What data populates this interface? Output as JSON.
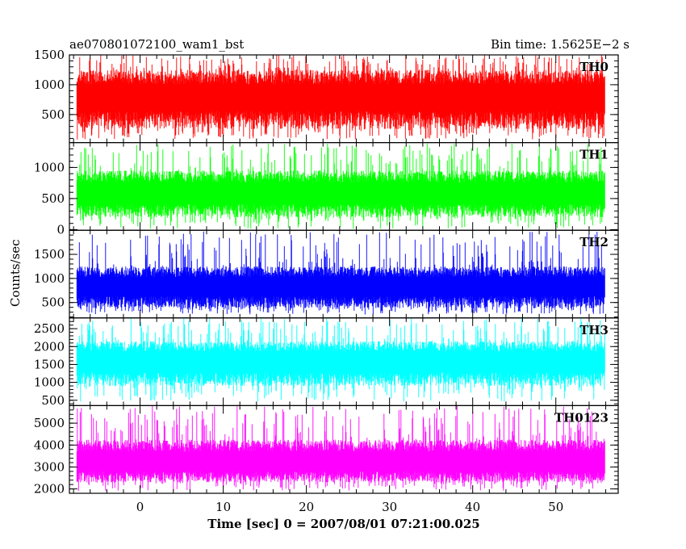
{
  "header": {
    "left": "ae070801072100_wam1_bst",
    "right": "Bin time: 1.5625E−2 s"
  },
  "axes": {
    "ylabel": "Counts/sec",
    "xlabel": "Time [sec] 0 = 2007/08/01 07:21:00.025"
  },
  "chart_data": {
    "type": "line",
    "x_range": [
      -8.5,
      57.5
    ],
    "x_ticks": [
      0,
      10,
      20,
      30,
      40,
      50
    ],
    "x_data_span": [
      -7.6,
      55.9
    ],
    "panels": [
      {
        "name": "TH0",
        "color": "#ff0000",
        "ylim": [
          30,
          1500
        ],
        "y_ticks": [
          500,
          1000,
          1500
        ],
        "band": [
          260,
          760,
          1250
        ],
        "extremes": [
          80,
          1500
        ]
      },
      {
        "name": "TH1",
        "color": "#00ff00",
        "ylim": [
          -10,
          1400
        ],
        "y_ticks": [
          0,
          500,
          1000
        ],
        "band": [
          200,
          560,
          950
        ],
        "extremes": [
          10,
          1390
        ]
      },
      {
        "name": "TH2",
        "color": "#0000ff",
        "ylim": [
          180,
          2000
        ],
        "y_ticks": [
          500,
          1000,
          1500
        ],
        "band": [
          380,
          800,
          1250
        ],
        "extremes": [
          250,
          1980
        ]
      },
      {
        "name": "TH3",
        "color": "#00ffff",
        "ylim": [
          350,
          2800
        ],
        "y_ticks": [
          500,
          1000,
          1500,
          2000,
          2500
        ],
        "band": [
          900,
          1550,
          2150
        ],
        "extremes": [
          450,
          2800
        ]
      },
      {
        "name": "TH0123",
        "color": "#ff00ff",
        "ylim": [
          1800,
          5800
        ],
        "y_ticks": [
          2000,
          3000,
          4000,
          5000
        ],
        "band": [
          2300,
          3150,
          4250
        ],
        "extremes": [
          1900,
          5800
        ]
      }
    ]
  }
}
